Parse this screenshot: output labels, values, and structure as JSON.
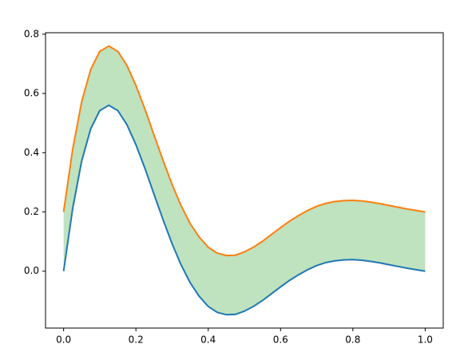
{
  "chart_data": {
    "type": "fill_between",
    "x": [
      0,
      0.025,
      0.05,
      0.075,
      0.1,
      0.125,
      0.15,
      0.175,
      0.2,
      0.225,
      0.25,
      0.275,
      0.3,
      0.325,
      0.35,
      0.375,
      0.4,
      0.425,
      0.45,
      0.475,
      0.5,
      0.525,
      0.55,
      0.575,
      0.6,
      0.625,
      0.65,
      0.675,
      0.7,
      0.725,
      0.75,
      0.775,
      0.8,
      0.825,
      0.85,
      0.875,
      0.9,
      0.925,
      0.95,
      0.975,
      1
    ],
    "series": [
      {
        "color": "#1f77b4",
        "values": [
          0,
          0.211,
          0.372,
          0.481,
          0.542,
          0.56,
          0.542,
          0.495,
          0.427,
          0.347,
          0.26,
          0.174,
          0.093,
          0.021,
          -0.039,
          -0.085,
          -0.119,
          -0.139,
          -0.147,
          -0.146,
          -0.135,
          -0.119,
          -0.099,
          -0.076,
          -0.053,
          -0.031,
          -0.012,
          0.005,
          0.019,
          0.029,
          0.035,
          0.038,
          0.039,
          0.037,
          0.033,
          0.028,
          0.022,
          0.016,
          0.01,
          0.005,
          0
        ]
      },
      {
        "color": "#ff7f0e",
        "values": [
          0.2,
          0.411,
          0.572,
          0.681,
          0.742,
          0.76,
          0.742,
          0.695,
          0.627,
          0.547,
          0.46,
          0.374,
          0.293,
          0.221,
          0.161,
          0.115,
          0.081,
          0.061,
          0.053,
          0.054,
          0.065,
          0.081,
          0.101,
          0.124,
          0.147,
          0.169,
          0.188,
          0.205,
          0.219,
          0.229,
          0.235,
          0.238,
          0.239,
          0.237,
          0.233,
          0.228,
          0.222,
          0.216,
          0.21,
          0.205,
          0.2
        ]
      }
    ],
    "fill_color": "#2ca02c",
    "fill_alpha": 0.3,
    "xlim": [
      -0.05,
      1.05
    ],
    "xticks": [
      {
        "value": 0,
        "label": "0.0"
      },
      0.2,
      0.4,
      0.6,
      0.8,
      {
        "value": 1,
        "label": "1.0"
      }
    ],
    "ylim": [
      -0.192,
      0.805
    ],
    "yticks": [
      {
        "value": 0,
        "label": "0.0"
      },
      0.2,
      0.4,
      0.6,
      0.8
    ],
    "grid": false
  }
}
